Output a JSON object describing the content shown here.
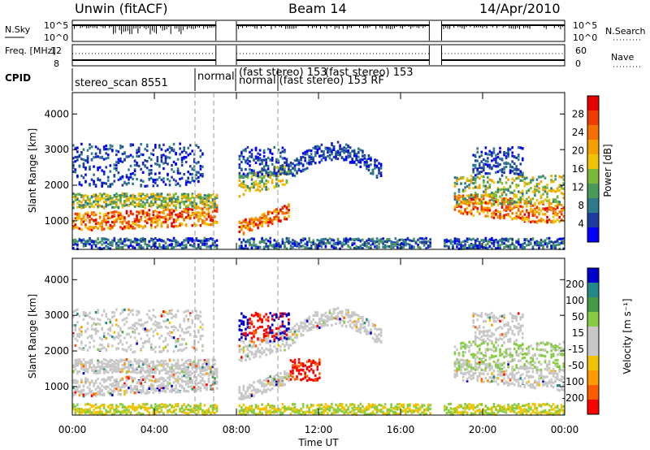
{
  "header": {
    "station": "Unwin (fitACF)",
    "beam": "Beam 14",
    "date": "14/Apr/2010"
  },
  "colors": {
    "power_scale": [
      "#0000ff",
      "#1e3ca0",
      "#2f7a8a",
      "#4a9a5a",
      "#7ab838",
      "#f2c400",
      "#f5a000",
      "#f57000",
      "#ef3c00",
      "#e60000"
    ],
    "velocity_scale": [
      "#ff0000",
      "#ff5a00",
      "#ff9a00",
      "#f2c400",
      "#c8c8c8",
      "#c8c8c8",
      "#88cc44",
      "#449944",
      "#228888",
      "#0000cc"
    ],
    "sky_noise": "#000000",
    "range_gates_low": "#888888"
  },
  "chart_data": [
    {
      "type": "line",
      "panel": "noise",
      "left_label": "N.Sky",
      "right_label": "N.Search",
      "yticks_left": [
        "10^5",
        "10^0"
      ],
      "yticks_right": [
        "10^5",
        "10^0"
      ],
      "segments_hours": [
        [
          0,
          7.0
        ],
        [
          8.0,
          17.4
        ],
        [
          18.0,
          24
        ]
      ]
    },
    {
      "type": "line",
      "panel": "frequency",
      "left_label": "Freq. [MHz]",
      "right_label": "Nave",
      "yticks_left": [
        "12",
        "8"
      ],
      "yticks_right": [
        "60",
        "0"
      ]
    },
    {
      "type": "table",
      "panel": "cpid",
      "label": "CPID",
      "entries": [
        "stereo_scan 8551",
        "normal",
        "(fast stereo) 153",
        "normal (fast stereo) 153 RF",
        "(fast stereo) 153"
      ]
    },
    {
      "type": "heatmap",
      "panel": "power",
      "ylabel": "Slant Range [km]",
      "yticks": [
        "1000",
        "2000",
        "3000",
        "4000"
      ],
      "ylim": [
        200,
        4600
      ],
      "colorbar_label": "Power [dB]",
      "colorbar_ticks": [
        "4",
        "8",
        "12",
        "16",
        "20",
        "24",
        "28"
      ],
      "range": [
        0,
        30
      ]
    },
    {
      "type": "heatmap",
      "panel": "velocity",
      "ylabel": "Slant Range [km]",
      "yticks": [
        "1000",
        "2000",
        "3000",
        "4000"
      ],
      "ylim": [
        200,
        4600
      ],
      "colorbar_label": "Velocity [m s⁻¹]",
      "colorbar_ticks": [
        "200",
        "100",
        "50",
        "15",
        "-15",
        "-50",
        "-100",
        "-200"
      ],
      "range": [
        -250,
        250
      ]
    }
  ],
  "xaxis": {
    "label": "Time UT",
    "ticks": [
      "00:00",
      "04:00",
      "08:00",
      "12:00",
      "16:00",
      "20:00",
      "00:00"
    ],
    "xlim": [
      0,
      24
    ]
  }
}
